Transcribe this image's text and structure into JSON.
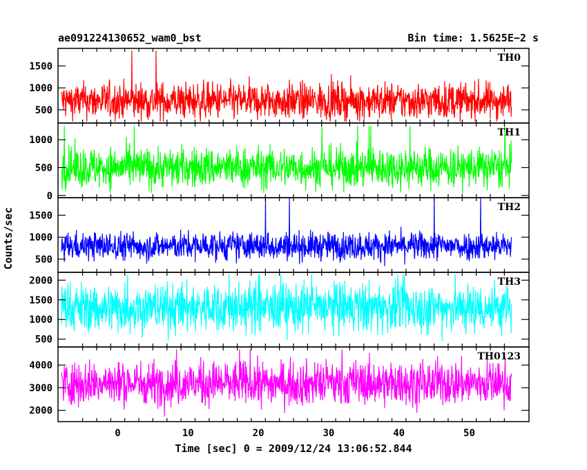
{
  "title_left": "ae091224130652_wam0_bst",
  "title_right": "Bin time: 1.5625E−2 s",
  "xlabel": "Time [sec] 0 = 2009/12/24 13:06:52.844",
  "ylabel": "Counts/sec",
  "chart_data": {
    "type": "line",
    "x_range": [
      -8.5,
      58.5
    ],
    "x_data_range": [
      -8,
      56
    ],
    "x_ticks": [
      0,
      10,
      20,
      30,
      40,
      50
    ],
    "grid": false,
    "panels": [
      {
        "name": "TH0",
        "color": "#ff0000",
        "ylim": [
          200,
          1900
        ],
        "y_ticks": [
          500,
          1000,
          1500
        ],
        "baseline": 700,
        "spread": 300,
        "peak": 1850
      },
      {
        "name": "TH1",
        "color": "#00ff00",
        "ylim": [
          -40,
          1300
        ],
        "y_ticks": [
          0,
          500,
          1000
        ],
        "baseline": 500,
        "spread": 260,
        "peak": 1250
      },
      {
        "name": "TH2",
        "color": "#0000ff",
        "ylim": [
          200,
          1900
        ],
        "y_ticks": [
          500,
          1000,
          1500
        ],
        "baseline": 800,
        "spread": 230,
        "peak": 1900
      },
      {
        "name": "TH3",
        "color": "#00ffff",
        "ylim": [
          300,
          2200
        ],
        "y_ticks": [
          500,
          1000,
          1500,
          2000
        ],
        "baseline": 1300,
        "spread": 450,
        "peak": 2150
      },
      {
        "name": "TH0123",
        "color": "#ff00ff",
        "ylim": [
          1500,
          4800
        ],
        "y_ticks": [
          2000,
          3000,
          4000
        ],
        "baseline": 3200,
        "spread": 700,
        "peak": 4700
      }
    ]
  }
}
